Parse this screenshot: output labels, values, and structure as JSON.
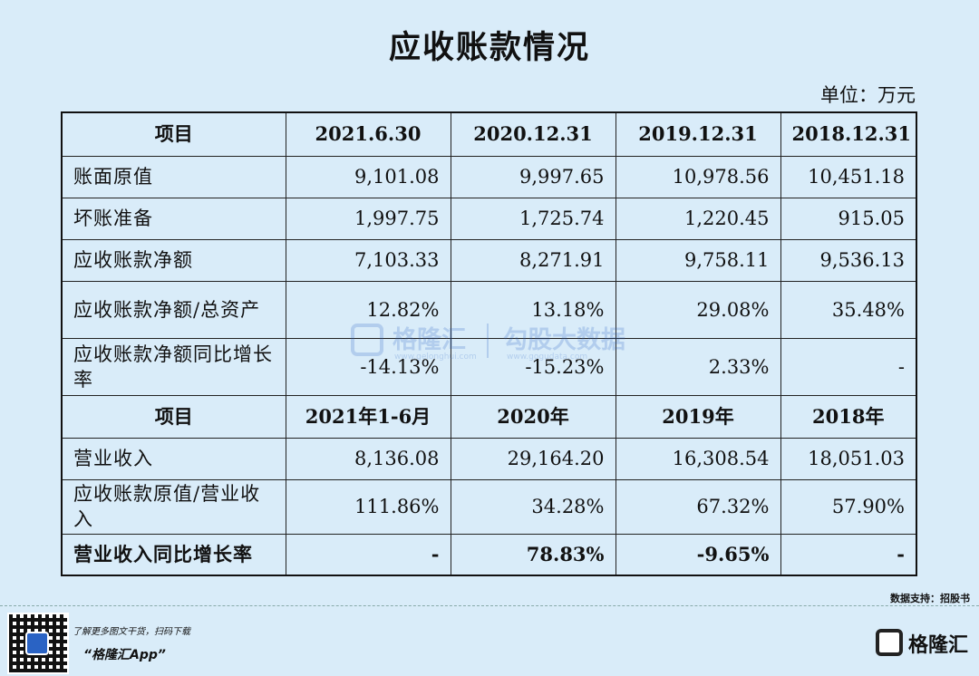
{
  "title": "应收账款情况",
  "unit": "单位：万元",
  "table": {
    "header1": [
      "项目",
      "2021.6.30",
      "2020.12.31",
      "2019.12.31",
      "2018.12.31"
    ],
    "rows1": [
      {
        "label": "账面原值",
        "values": [
          "9,101.08",
          "9,997.65",
          "10,978.56",
          "10,451.18"
        ]
      },
      {
        "label": "坏账准备",
        "values": [
          "1,997.75",
          "1,725.74",
          "1,220.45",
          "915.05"
        ]
      },
      {
        "label": "应收账款净额",
        "values": [
          "7,103.33",
          "8,271.91",
          "9,758.11",
          "9,536.13"
        ]
      },
      {
        "label": "应收账款净额/总资产",
        "values": [
          "12.82%",
          "13.18%",
          "29.08%",
          "35.48%"
        ]
      },
      {
        "label": "应收账款净额同比增长率",
        "values": [
          "-14.13%",
          "-15.23%",
          "2.33%",
          "-"
        ]
      }
    ],
    "header2": [
      "项目",
      "2021年1-6月",
      "2020年",
      "2019年",
      "2018年"
    ],
    "rows2": [
      {
        "label": "营业收入",
        "values": [
          "8,136.08",
          "29,164.20",
          "16,308.54",
          "18,051.03"
        ]
      },
      {
        "label": "应收账款原值/营业收入",
        "values": [
          "111.86%",
          "34.28%",
          "67.32%",
          "57.90%"
        ]
      },
      {
        "label": "营业收入同比增长率",
        "values": [
          "-",
          "78.83%",
          "-9.65%",
          "-"
        ]
      }
    ]
  },
  "watermark": {
    "brand": "格隆汇",
    "brand_url": "www.gelonghui.com",
    "data_brand": "勾股大数据",
    "data_url": "www.gogudata.com"
  },
  "source": "数据支持：招股书",
  "footer": {
    "promo_line": "了解更多图文干货，扫码下载",
    "app_name": "“格隆汇App”",
    "brand": "格隆汇"
  }
}
